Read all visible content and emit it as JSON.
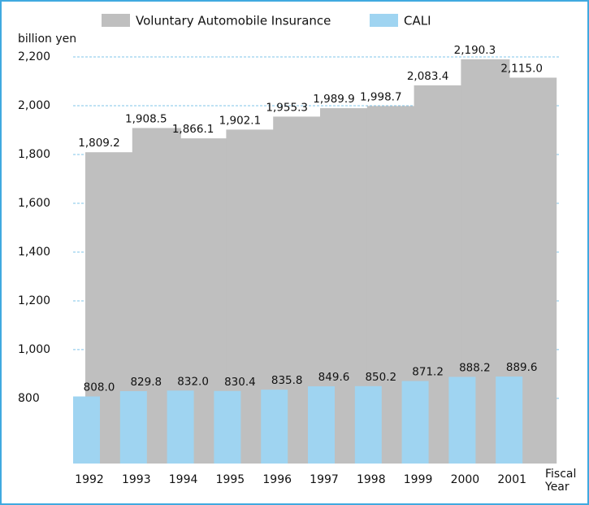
{
  "chart_data": {
    "type": "bar",
    "y_label": "billion yen",
    "x_label": "Fiscal Year",
    "categories": [
      "1992",
      "1993",
      "1994",
      "1995",
      "1996",
      "1997",
      "1998",
      "1999",
      "2000",
      "2001"
    ],
    "series": [
      {
        "name": "Voluntary Automobile Insurance",
        "color": "#bfbfbf",
        "values": [
          1809.2,
          1908.5,
          1866.1,
          1902.1,
          1955.3,
          1989.9,
          1998.7,
          2083.4,
          2190.3,
          2115.0
        ],
        "value_labels": [
          "1,809.2",
          "1,908.5",
          "1,866.1",
          "1,902.1",
          "1,955.3",
          "1,989.9",
          "1,998.7",
          "2,083.4",
          "2,190.3",
          "2,115.0"
        ]
      },
      {
        "name": "CALI",
        "color": "#9fd4f1",
        "values": [
          808.0,
          829.8,
          832.0,
          830.4,
          835.8,
          849.6,
          850.2,
          871.2,
          888.2,
          889.6
        ],
        "value_labels": [
          "808.0",
          "829.8",
          "832.0",
          "830.4",
          "835.8",
          "849.6",
          "850.2",
          "871.2",
          "888.2",
          "889.6"
        ]
      }
    ],
    "ylim": [
      533,
      2200
    ],
    "yticks": [
      800,
      {
        "value": 1000,
        "label": "1,000"
      },
      {
        "value": 1200,
        "label": "1,200"
      },
      {
        "value": 1400,
        "label": "1,400"
      },
      {
        "value": 1600,
        "label": "1,600"
      },
      {
        "value": 1800,
        "label": "1,800"
      },
      {
        "value": 2000,
        "label": "2,000"
      },
      {
        "value": 2200,
        "label": "2,200"
      }
    ],
    "grid": true,
    "legend": "top"
  }
}
